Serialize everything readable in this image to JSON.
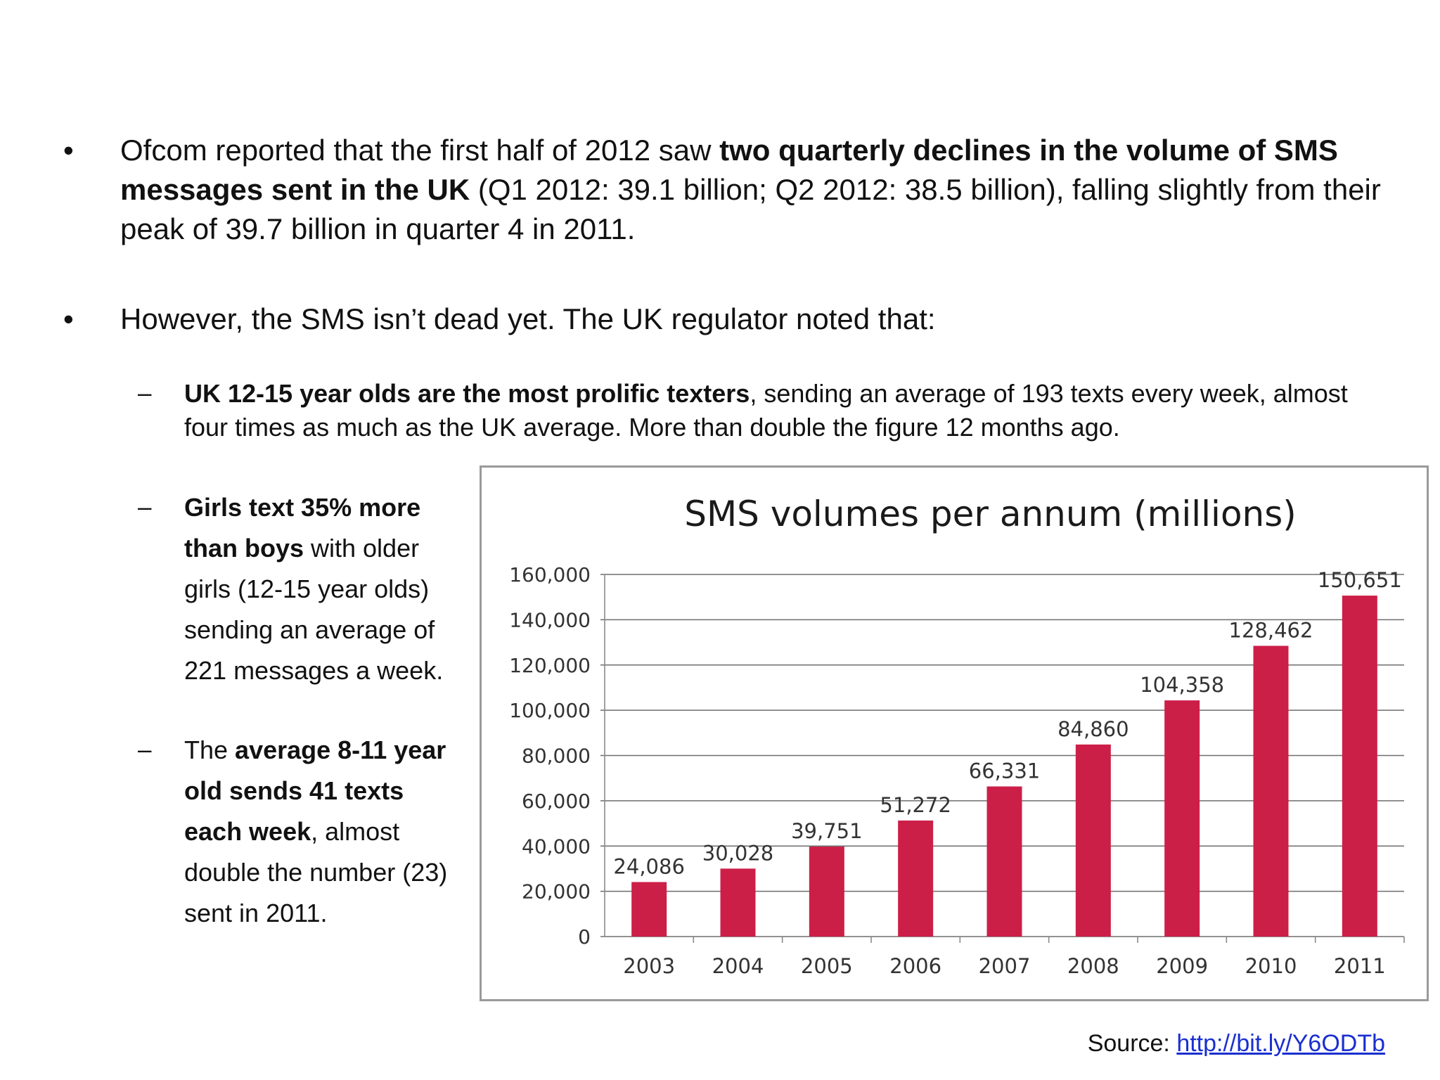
{
  "bullets": {
    "b1": {
      "marker": "•",
      "t1": "Ofcom reported that the first half of 2012 saw ",
      "b": "two quarterly declines in the volume of SMS messages sent in the UK",
      "t2": " (Q1 2012: 39.1 billion; Q2 2012: 38.5 billion), falling slightly from their peak of 39.7 billion in quarter 4 in 2011."
    },
    "b2": {
      "marker": "•",
      "text": "However, the SMS isn’t dead yet. The UK regulator noted that:"
    }
  },
  "subs": {
    "s1": {
      "marker": "–",
      "b": "UK 12-15 year olds are the most prolific texters",
      "t": ", sending an average of 193 texts every week, almost four times as much as the UK average. More than double the figure 12 months ago."
    },
    "s2": {
      "marker": "–",
      "b": "Girls text 35% more than boys",
      "t": " with older girls (12-15 year olds) sending an average of 221 messages a week."
    },
    "s3": {
      "marker": "–",
      "t1": "The ",
      "b": "average 8-11 year old sends 41 texts each week",
      "t2": ", almost double the number (23) sent in 2011."
    }
  },
  "source": {
    "label": "Source: ",
    "link": "http://bit.ly/Y6ODTb"
  },
  "chart_data": {
    "type": "bar",
    "title": "SMS volumes per annum (millions)",
    "categories": [
      "2003",
      "2004",
      "2005",
      "2006",
      "2007",
      "2008",
      "2009",
      "2010",
      "2011"
    ],
    "values": [
      24086,
      30028,
      39751,
      51272,
      66331,
      84860,
      104358,
      128462,
      150651
    ],
    "value_labels": [
      "24,086",
      "30,028",
      "39,751",
      "51,272",
      "66,331",
      "84,860",
      "104,358",
      "128,462",
      "150,651"
    ],
    "ylim": [
      0,
      160000
    ],
    "yticks": [
      0,
      20000,
      40000,
      60000,
      80000,
      100000,
      120000,
      140000,
      160000
    ],
    "ytick_labels": [
      "0",
      "20,000",
      "40,000",
      "60,000",
      "80,000",
      "100,000",
      "120,000",
      "140,000",
      "160,000"
    ],
    "grid": true,
    "legend": "none",
    "bar_color": "#cc1f48"
  }
}
